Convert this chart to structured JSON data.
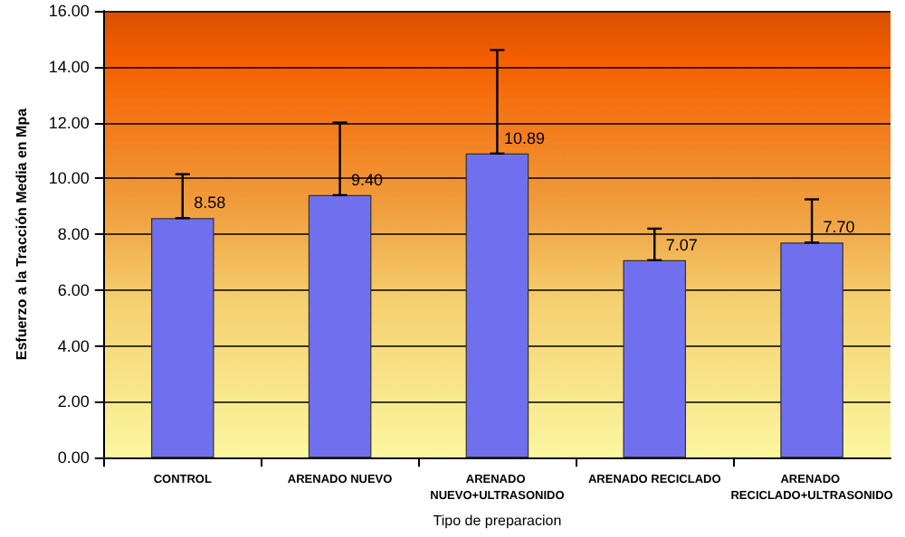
{
  "chart_data": {
    "type": "bar",
    "xlabel": "Tipo de preparacion",
    "ylabel": "Esfuerzo a la Tracción Media en Mpa",
    "categories": [
      "CONTROL",
      "ARENADO NUEVO",
      "ARENADO NUEVO+ULTRASONIDO",
      "ARENADO RECICLADO",
      "ARENADO RECICLADO+ULTRASONIDO"
    ],
    "values": [
      8.58,
      9.4,
      10.89,
      7.07,
      7.7
    ],
    "value_labels": [
      "8.58",
      "9.40",
      "10.89",
      "7.07",
      "7.70"
    ],
    "errors": [
      [
        8.58,
        10.15
      ],
      [
        9.4,
        12.0
      ],
      [
        10.89,
        14.6
      ],
      [
        7.07,
        8.2
      ],
      [
        7.7,
        9.25
      ]
    ],
    "color": "#7070ee",
    "ylim": [
      0,
      16
    ],
    "yticks": [
      {
        "value": 0,
        "label": "0.00"
      },
      {
        "value": 2,
        "label": "2.00"
      },
      {
        "value": 4,
        "label": "4.00"
      },
      {
        "value": 6,
        "label": "6.00"
      },
      {
        "value": 8,
        "label": "8.00"
      },
      {
        "value": 10,
        "label": "10.00"
      },
      {
        "value": 12,
        "label": "12.00"
      },
      {
        "value": 14,
        "label": "14.00"
      },
      {
        "value": 16,
        "label": "16.00"
      }
    ],
    "grid": "y"
  }
}
